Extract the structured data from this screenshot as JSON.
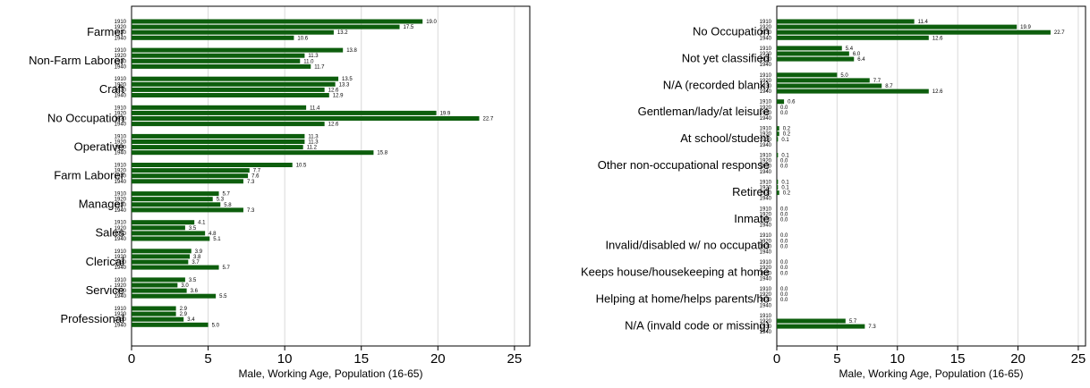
{
  "colors": {
    "bar": "#0d5e0d",
    "grid": "#d9d9d9",
    "axis": "#000000",
    "text": "#000000"
  },
  "chart_data": [
    {
      "type": "bar",
      "orientation": "horizontal",
      "title": "",
      "xlabel": "Male, Working Age, Population (16-65)",
      "ylabel": "",
      "xlim": [
        0,
        26
      ],
      "xticks": [
        0,
        5,
        10,
        15,
        20,
        25
      ],
      "grid": true,
      "legend": "none",
      "years": [
        "1910",
        "1920",
        "1930",
        "1940"
      ],
      "categories": [
        {
          "label": "Farmer",
          "values": [
            19.0,
            17.5,
            13.2,
            10.6
          ]
        },
        {
          "label": "Non-Farm Laborer",
          "values": [
            13.8,
            11.3,
            11.0,
            11.7
          ]
        },
        {
          "label": "Craft",
          "values": [
            13.5,
            13.3,
            12.6,
            12.9
          ]
        },
        {
          "label": "No Occupation",
          "values": [
            11.4,
            19.9,
            22.7,
            12.6
          ]
        },
        {
          "label": "Operative",
          "values": [
            11.3,
            11.3,
            11.2,
            15.8
          ]
        },
        {
          "label": "Farm Laborer",
          "values": [
            10.5,
            7.7,
            7.6,
            7.3
          ]
        },
        {
          "label": "Manager",
          "values": [
            5.7,
            5.3,
            5.8,
            7.3
          ]
        },
        {
          "label": "Sales",
          "values": [
            4.1,
            3.5,
            4.8,
            5.1
          ]
        },
        {
          "label": "Clerical",
          "values": [
            3.9,
            3.8,
            3.7,
            5.7
          ]
        },
        {
          "label": "Service",
          "values": [
            3.5,
            3.0,
            3.6,
            5.5
          ]
        },
        {
          "label": "Professional",
          "values": [
            2.9,
            2.9,
            3.4,
            5.0
          ]
        }
      ]
    },
    {
      "type": "bar",
      "orientation": "horizontal",
      "title": "",
      "xlabel": "Male, Working Age, Population (16-65)",
      "ylabel": "",
      "xlim": [
        0,
        25.6
      ],
      "xticks": [
        0,
        5,
        10,
        15,
        20,
        25
      ],
      "grid": true,
      "legend": "none",
      "years": [
        "1910",
        "1920",
        "1930",
        "1940"
      ],
      "categories": [
        {
          "label": "No Occupation",
          "values": [
            11.4,
            19.9,
            22.7,
            12.6
          ]
        },
        {
          "label": "Not yet classified",
          "values": [
            5.4,
            6.0,
            6.4,
            null
          ]
        },
        {
          "label": "N/A (recorded blank)",
          "values": [
            5.0,
            7.7,
            8.7,
            12.6
          ]
        },
        {
          "label": "Gentleman/lady/at leisure",
          "values": [
            0.6,
            0.0,
            0.0,
            null
          ]
        },
        {
          "label": "At school/student",
          "values": [
            0.2,
            0.2,
            0.1,
            null
          ]
        },
        {
          "label": "Other non-occupational response",
          "values": [
            0.1,
            0.0,
            0.0,
            null
          ]
        },
        {
          "label": "Retired",
          "values": [
            0.1,
            0.1,
            0.2,
            null
          ]
        },
        {
          "label": "Inmate",
          "values": [
            0.0,
            0.0,
            0.0,
            null
          ]
        },
        {
          "label": "Invalid/disabled w/ no occupatio",
          "values": [
            0.0,
            0.0,
            0.0,
            null
          ]
        },
        {
          "label": "Keeps house/housekeeping at home",
          "values": [
            0.0,
            0.0,
            0.0,
            null
          ]
        },
        {
          "label": "Helping at home/helps parents/ho",
          "values": [
            0.0,
            0.0,
            0.0,
            null
          ]
        },
        {
          "label": "N/A (invald code or missing)",
          "values": [
            null,
            5.7,
            7.3,
            null
          ]
        }
      ]
    }
  ]
}
